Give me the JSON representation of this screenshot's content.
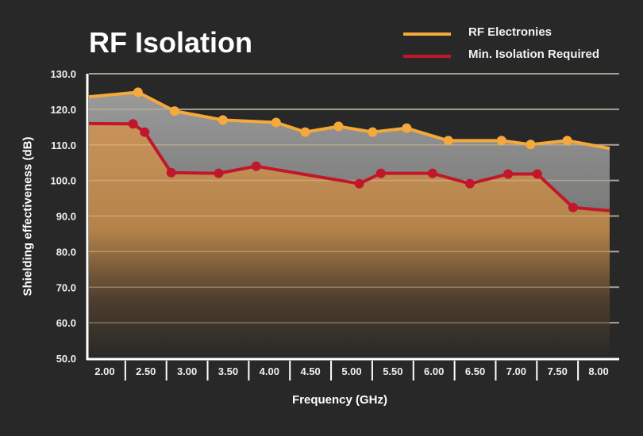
{
  "chart_data": {
    "type": "area",
    "title": "RF Isolation",
    "xlabel": "Frequency (GHz)",
    "ylabel": "Shielding effectiveness (dB)",
    "ylim": [
      50,
      130
    ],
    "yticks": [
      "50.0",
      "60.0",
      "70.0",
      "80.0",
      "90.0",
      "100.0",
      "110.0",
      "120.0",
      "130.0"
    ],
    "ytick_values": [
      50,
      60,
      70,
      80,
      90,
      100,
      110,
      120,
      130
    ],
    "xtick_labels": [
      "2.00",
      "2.50",
      "3.00",
      "3.50",
      "4.00",
      "4.50",
      "5.00",
      "5.50",
      "6.00",
      "6.50",
      "7.00",
      "7.50",
      "8.00"
    ],
    "xlim": [
      1.81,
      8.07
    ],
    "grid": true,
    "legend_position": "top-right",
    "series": [
      {
        "name": "RF Electronies",
        "color": "#f5a93a",
        "fill": "#9a9a9a",
        "x": [
          1.81,
          2.4,
          2.84,
          3.42,
          4.06,
          4.41,
          4.81,
          5.22,
          5.63,
          6.13,
          6.77,
          7.12,
          7.56,
          8.07
        ],
        "y": [
          123.5,
          124.8,
          119.5,
          117.0,
          116.3,
          113.6,
          115.2,
          113.6,
          114.7,
          111.2,
          111.2,
          110.1,
          111.2,
          109.0
        ],
        "markers": [
          false,
          true,
          true,
          true,
          true,
          true,
          true,
          true,
          true,
          true,
          true,
          true,
          true,
          false
        ]
      },
      {
        "name": "Min. Isolation Required",
        "color": "#c0182a",
        "fill": "#c8935a",
        "x": [
          1.81,
          2.34,
          2.48,
          2.8,
          3.37,
          3.82,
          5.06,
          5.32,
          5.94,
          6.39,
          6.85,
          7.2,
          7.63,
          8.07
        ],
        "y": [
          116.0,
          115.9,
          113.6,
          102.2,
          102.0,
          104.0,
          99.1,
          102.0,
          102.0,
          99.1,
          101.8,
          101.8,
          92.4,
          91.5
        ],
        "markers": [
          false,
          true,
          true,
          true,
          true,
          true,
          true,
          true,
          true,
          true,
          true,
          true,
          true,
          false
        ]
      }
    ]
  }
}
